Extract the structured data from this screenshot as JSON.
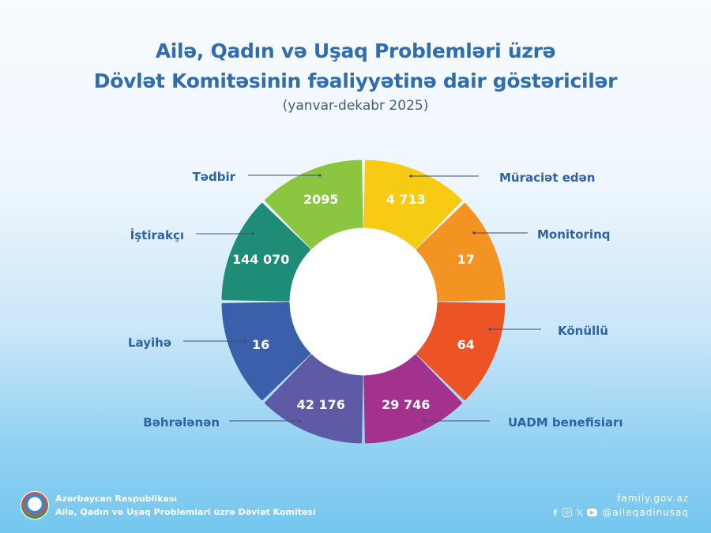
{
  "header": {
    "title_line1": "Ailə, Qadın və Uşaq Problemləri üzrə",
    "title_line2": "Dövlət Komitəsinin fəaliyyətinə dair göstəricilər",
    "subtitle": "(yanvar-dekabr 2025)"
  },
  "chart_data": {
    "type": "pie",
    "title": "Ailə, Qadın və Uşaq Problemləri üzrə Dövlət Komitəsinin fəaliyyətinə dair göstəricilər",
    "subtitle": "(yanvar-dekabr 2025)",
    "segments": [
      {
        "label": "Müraciət  edən",
        "value_text": "4 713",
        "value": 4713,
        "color": "#f7ca14"
      },
      {
        "label": "Monitorinq",
        "value_text": "17",
        "value": 17,
        "color": "#f39322"
      },
      {
        "label": "Könüllü",
        "value_text": "64",
        "value": 64,
        "color": "#ec5426"
      },
      {
        "label": "UADM benefisiarı",
        "value_text": "29 746",
        "value": 29746,
        "color": "#a3328f"
      },
      {
        "label": "Bəhrələnən",
        "value_text": "42 176",
        "value": 42176,
        "color": "#5e5aa6"
      },
      {
        "label": "Layihə",
        "value_text": "16",
        "value": 16,
        "color": "#3b5faa"
      },
      {
        "label": "İştirakçı",
        "value_text": "144 070",
        "value": 144070,
        "color": "#1f8c78"
      },
      {
        "label": "Tədbir",
        "value_text": "2095",
        "value": 2095,
        "color": "#8cc540"
      }
    ]
  },
  "footer": {
    "org_line1": "Azərbaycan Respublikası",
    "org_line2": "Ailə, Qadın və Uşaq Problemlari üzrə Dövlət Komitəsi",
    "website": "family.gov.az",
    "social_handle": "@aileqadinusaq",
    "social_icons": [
      "facebook-icon",
      "instagram-icon",
      "x-icon",
      "youtube-icon"
    ]
  }
}
